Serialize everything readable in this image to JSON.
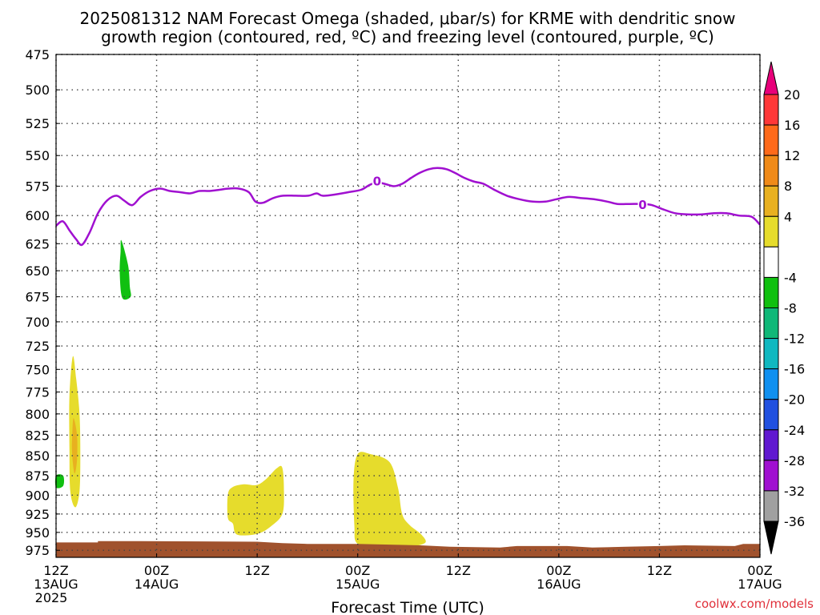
{
  "title_line1": "2025081312 NAM Forecast Omega (shaded, μbar/s) for KRME with dendritic snow",
  "title_line2": "growth region (contoured, red, ºC) and freezing level (contoured, purple, ºC)",
  "credit": "coolwx.com/models",
  "chart_data": {
    "type": "contour",
    "xlabel": "Forecast Time (UTC)",
    "ylabel": "",
    "x_range_hours": [
      0,
      84
    ],
    "y_range_hpa": [
      475,
      985
    ],
    "y_scale": "log-pressure",
    "grid": true,
    "y_ticks": [
      475,
      500,
      525,
      550,
      575,
      600,
      625,
      650,
      675,
      700,
      725,
      750,
      775,
      800,
      825,
      850,
      875,
      900,
      925,
      950,
      975
    ],
    "x_ticks": [
      {
        "hour": 0,
        "lines": [
          "12Z",
          "13AUG",
          "2025"
        ]
      },
      {
        "hour": 12,
        "lines": [
          "00Z",
          "14AUG"
        ]
      },
      {
        "hour": 24,
        "lines": [
          "12Z"
        ]
      },
      {
        "hour": 36,
        "lines": [
          "00Z",
          "15AUG"
        ]
      },
      {
        "hour": 48,
        "lines": [
          "12Z"
        ]
      },
      {
        "hour": 60,
        "lines": [
          "00Z",
          "16AUG"
        ]
      },
      {
        "hour": 72,
        "lines": [
          "12Z"
        ]
      },
      {
        "hour": 84,
        "lines": [
          "00Z",
          "17AUG"
        ]
      }
    ],
    "colorbar": {
      "labels": [
        "20",
        "16",
        "12",
        "8",
        "4",
        "-4",
        "-8",
        "-12",
        "-16",
        "-20",
        "-24",
        "-28",
        "-32",
        "-36"
      ],
      "colors_top_to_bottom": [
        "#e8007a",
        "#ff3838",
        "#ff6a1a",
        "#f08a18",
        "#e8b020",
        "#e6dc2c",
        "#ffffff",
        "#10c010",
        "#10b878",
        "#10b8c0",
        "#1090f0",
        "#2050e0",
        "#6018d0",
        "#a010d0",
        "#a0a0a0",
        "#000000"
      ]
    },
    "freezing_level": {
      "label": "0",
      "color": "#a010d0",
      "label_points": [
        {
          "hour": 38.3,
          "hpa": 571
        },
        {
          "hour": 70.0,
          "hpa": 591
        }
      ],
      "points": [
        {
          "hour": 0.0,
          "hpa": 609
        },
        {
          "hour": 0.8,
          "hpa": 605
        },
        {
          "hour": 1.6,
          "hpa": 613
        },
        {
          "hour": 2.4,
          "hpa": 621
        },
        {
          "hour": 3.1,
          "hpa": 626
        },
        {
          "hour": 4.0,
          "hpa": 615
        },
        {
          "hour": 5.0,
          "hpa": 598
        },
        {
          "hour": 6.1,
          "hpa": 587
        },
        {
          "hour": 7.2,
          "hpa": 583
        },
        {
          "hour": 8.1,
          "hpa": 587
        },
        {
          "hour": 9.1,
          "hpa": 591
        },
        {
          "hour": 10.1,
          "hpa": 584
        },
        {
          "hour": 11.2,
          "hpa": 579
        },
        {
          "hour": 12.4,
          "hpa": 577
        },
        {
          "hour": 13.6,
          "hpa": 579
        },
        {
          "hour": 14.8,
          "hpa": 580
        },
        {
          "hour": 16.0,
          "hpa": 581
        },
        {
          "hour": 17.1,
          "hpa": 579
        },
        {
          "hour": 18.3,
          "hpa": 579
        },
        {
          "hour": 19.5,
          "hpa": 578
        },
        {
          "hour": 20.6,
          "hpa": 577
        },
        {
          "hour": 21.8,
          "hpa": 577
        },
        {
          "hour": 23.0,
          "hpa": 580
        },
        {
          "hour": 23.8,
          "hpa": 588
        },
        {
          "hour": 24.7,
          "hpa": 589
        },
        {
          "hour": 25.9,
          "hpa": 585
        },
        {
          "hour": 27.1,
          "hpa": 583
        },
        {
          "hour": 28.6,
          "hpa": 583
        },
        {
          "hour": 30.1,
          "hpa": 583
        },
        {
          "hour": 31.1,
          "hpa": 581
        },
        {
          "hour": 31.8,
          "hpa": 583
        },
        {
          "hour": 33.3,
          "hpa": 582
        },
        {
          "hour": 34.9,
          "hpa": 580
        },
        {
          "hour": 36.4,
          "hpa": 578
        },
        {
          "hour": 37.4,
          "hpa": 574
        },
        {
          "hour": 38.3,
          "hpa": 572
        },
        {
          "hour": 39.2,
          "hpa": 573
        },
        {
          "hour": 40.3,
          "hpa": 575
        },
        {
          "hour": 41.3,
          "hpa": 573
        },
        {
          "hour": 42.4,
          "hpa": 568
        },
        {
          "hour": 43.4,
          "hpa": 564
        },
        {
          "hour": 44.5,
          "hpa": 561
        },
        {
          "hour": 45.5,
          "hpa": 560
        },
        {
          "hour": 46.6,
          "hpa": 561
        },
        {
          "hour": 47.6,
          "hpa": 564
        },
        {
          "hour": 48.7,
          "hpa": 568
        },
        {
          "hour": 49.8,
          "hpa": 571
        },
        {
          "hour": 51.0,
          "hpa": 573
        },
        {
          "hour": 52.3,
          "hpa": 578
        },
        {
          "hour": 53.8,
          "hpa": 583
        },
        {
          "hour": 55.3,
          "hpa": 586
        },
        {
          "hour": 56.9,
          "hpa": 588
        },
        {
          "hour": 58.4,
          "hpa": 588
        },
        {
          "hour": 59.7,
          "hpa": 586
        },
        {
          "hour": 61.2,
          "hpa": 584
        },
        {
          "hour": 62.7,
          "hpa": 585
        },
        {
          "hour": 64.2,
          "hpa": 586
        },
        {
          "hour": 65.8,
          "hpa": 588
        },
        {
          "hour": 67.0,
          "hpa": 590
        },
        {
          "hour": 68.5,
          "hpa": 590
        },
        {
          "hour": 70.0,
          "hpa": 590
        },
        {
          "hour": 71.1,
          "hpa": 591
        },
        {
          "hour": 72.6,
          "hpa": 595
        },
        {
          "hour": 73.9,
          "hpa": 598
        },
        {
          "hour": 75.4,
          "hpa": 599
        },
        {
          "hour": 77.0,
          "hpa": 599
        },
        {
          "hour": 78.5,
          "hpa": 598
        },
        {
          "hour": 80.0,
          "hpa": 598
        },
        {
          "hour": 81.5,
          "hpa": 600
        },
        {
          "hour": 83.0,
          "hpa": 601
        },
        {
          "hour": 84.0,
          "hpa": 608
        }
      ]
    },
    "omega_regions": [
      {
        "name": "green-region-650",
        "fill": "#10c010",
        "points": [
          {
            "hour": 7.8,
            "hpa": 622
          },
          {
            "hour": 8.6,
            "hpa": 645
          },
          {
            "hour": 8.8,
            "hpa": 665
          },
          {
            "hour": 8.9,
            "hpa": 675
          },
          {
            "hour": 7.9,
            "hpa": 676
          },
          {
            "hour": 7.6,
            "hpa": 652
          },
          {
            "hour": 7.7,
            "hpa": 632
          }
        ]
      },
      {
        "name": "green-region-885",
        "fill": "#10c010",
        "points": [
          {
            "hour": 0.0,
            "hpa": 875
          },
          {
            "hour": 0.85,
            "hpa": 875
          },
          {
            "hour": 0.85,
            "hpa": 888
          },
          {
            "hour": 0.0,
            "hpa": 890
          }
        ]
      },
      {
        "name": "yellow-region-830",
        "fill": "#e6dc2c",
        "points": [
          {
            "hour": 2.0,
            "hpa": 736
          },
          {
            "hour": 2.4,
            "hpa": 760
          },
          {
            "hour": 2.8,
            "hpa": 800
          },
          {
            "hour": 2.9,
            "hpa": 850
          },
          {
            "hour": 2.8,
            "hpa": 895
          },
          {
            "hour": 2.3,
            "hpa": 916
          },
          {
            "hour": 1.7,
            "hpa": 895
          },
          {
            "hour": 1.6,
            "hpa": 840
          },
          {
            "hour": 1.6,
            "hpa": 780
          }
        ]
      },
      {
        "name": "orange-region-830",
        "fill": "#e8b020",
        "points": [
          {
            "hour": 2.1,
            "hpa": 805
          },
          {
            "hour": 2.5,
            "hpa": 825
          },
          {
            "hour": 2.5,
            "hpa": 855
          },
          {
            "hour": 2.2,
            "hpa": 872
          },
          {
            "hour": 1.9,
            "hpa": 845
          },
          {
            "hour": 1.95,
            "hpa": 820
          }
        ]
      },
      {
        "name": "yellow-region-920",
        "fill": "#e6dc2c",
        "points": [
          {
            "hour": 21.0,
            "hpa": 890
          },
          {
            "hour": 22.4,
            "hpa": 886
          },
          {
            "hour": 23.9,
            "hpa": 887
          },
          {
            "hour": 25.0,
            "hpa": 880
          },
          {
            "hour": 26.3,
            "hpa": 866
          },
          {
            "hour": 27.0,
            "hpa": 865
          },
          {
            "hour": 27.2,
            "hpa": 895
          },
          {
            "hour": 27.0,
            "hpa": 925
          },
          {
            "hour": 25.6,
            "hpa": 942
          },
          {
            "hour": 24.0,
            "hpa": 952
          },
          {
            "hour": 21.6,
            "hpa": 953
          },
          {
            "hour": 21.1,
            "hpa": 938
          },
          {
            "hour": 20.5,
            "hpa": 930
          },
          {
            "hour": 20.5,
            "hpa": 900
          }
        ]
      },
      {
        "name": "yellow-region-900",
        "fill": "#e6dc2c",
        "points": [
          {
            "hour": 36.0,
            "hpa": 848
          },
          {
            "hour": 37.5,
            "hpa": 848
          },
          {
            "hour": 39.8,
            "hpa": 858
          },
          {
            "hour": 40.8,
            "hpa": 890
          },
          {
            "hour": 41.3,
            "hpa": 925
          },
          {
            "hour": 42.2,
            "hpa": 940
          },
          {
            "hour": 43.6,
            "hpa": 953
          },
          {
            "hour": 44.0,
            "hpa": 965
          },
          {
            "hour": 41.5,
            "hpa": 971
          },
          {
            "hour": 38.0,
            "hpa": 972
          },
          {
            "hour": 35.9,
            "hpa": 965
          },
          {
            "hour": 35.6,
            "hpa": 940
          },
          {
            "hour": 35.5,
            "hpa": 880
          }
        ]
      }
    ],
    "terrain": {
      "fill": "#a0522d",
      "points": [
        {
          "hour": 0,
          "hpa": 964
        },
        {
          "hour": 5,
          "hpa": 964
        },
        {
          "hour": 5,
          "hpa": 962
        },
        {
          "hour": 10,
          "hpa": 962
        },
        {
          "hour": 24,
          "hpa": 963
        },
        {
          "hour": 27,
          "hpa": 965
        },
        {
          "hour": 30,
          "hpa": 966
        },
        {
          "hour": 36,
          "hpa": 966
        },
        {
          "hour": 43.5,
          "hpa": 968
        },
        {
          "hour": 47,
          "hpa": 970
        },
        {
          "hour": 53,
          "hpa": 971
        },
        {
          "hour": 55,
          "hpa": 969
        },
        {
          "hour": 61,
          "hpa": 969
        },
        {
          "hour": 64,
          "hpa": 971
        },
        {
          "hour": 68,
          "hpa": 970
        },
        {
          "hour": 72,
          "hpa": 969
        },
        {
          "hour": 75,
          "hpa": 968
        },
        {
          "hour": 81,
          "hpa": 969
        },
        {
          "hour": 82,
          "hpa": 966
        },
        {
          "hour": 84,
          "hpa": 966
        }
      ]
    }
  }
}
